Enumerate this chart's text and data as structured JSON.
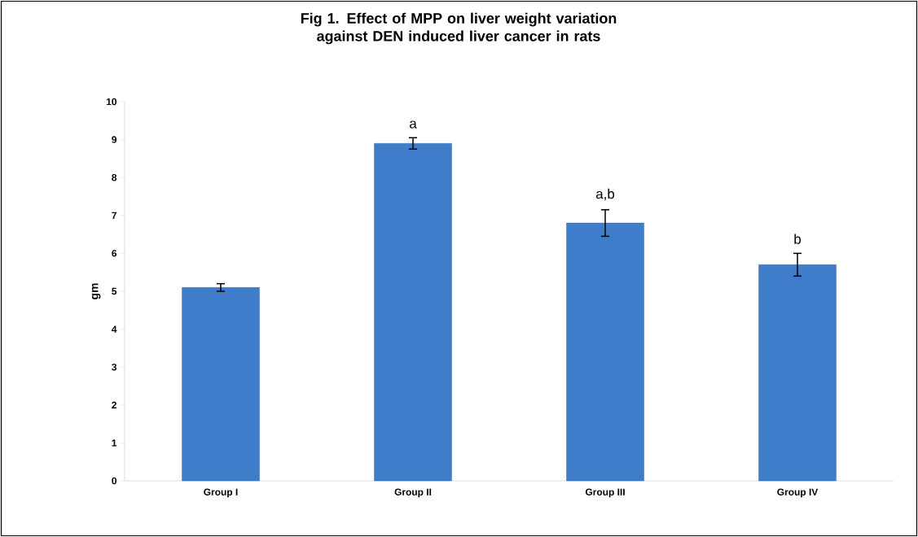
{
  "chart_data": {
    "type": "bar",
    "title": "Fig 1. Effect of MPP on liver weight variation against DEN induced liver cancer in rats",
    "ylabel": "gm",
    "categories": [
      "Group I",
      "Group II",
      "Group III",
      "Group IV"
    ],
    "values": [
      5.1,
      8.9,
      6.8,
      5.7
    ],
    "errors": [
      0.1,
      0.15,
      0.35,
      0.3
    ],
    "color": "#3f7dcb",
    "ylim": [
      0,
      10
    ],
    "yticks": [
      0,
      1,
      2,
      3,
      4,
      5,
      6,
      7,
      8,
      9,
      10
    ],
    "grid": false,
    "annotations": [
      "a",
      "a,b",
      "b"
    ]
  }
}
